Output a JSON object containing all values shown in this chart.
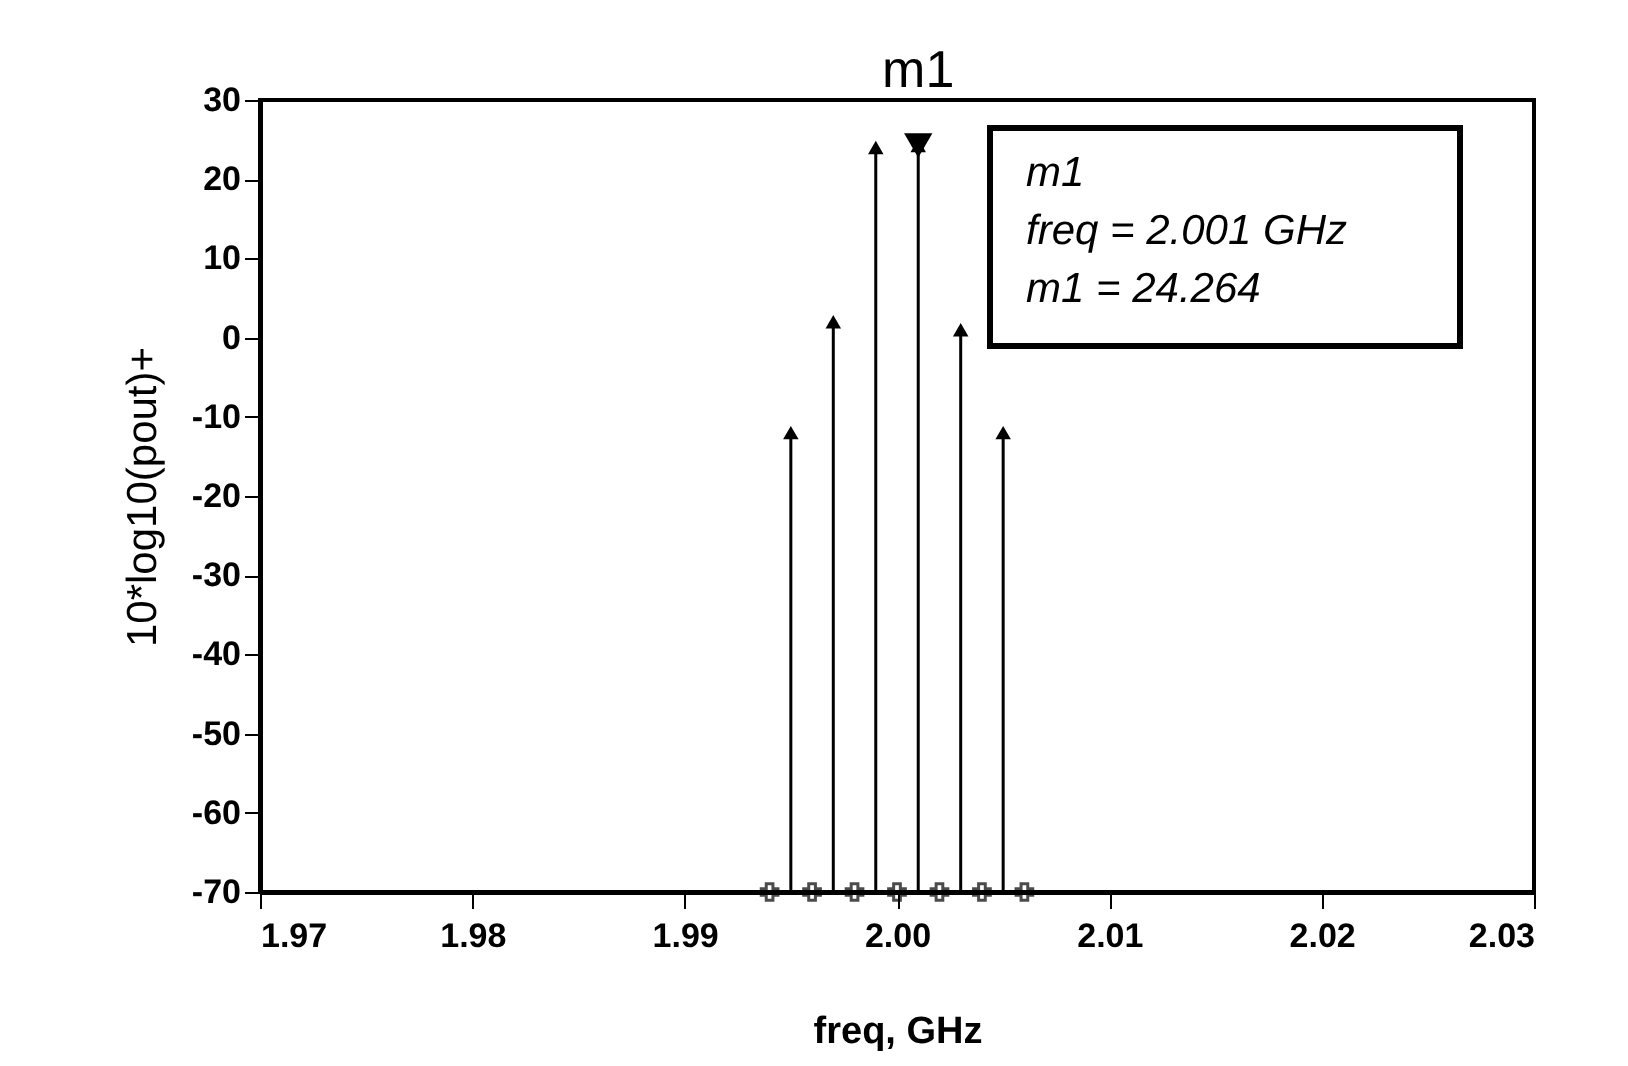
{
  "chart_data": {
    "type": "lollipop",
    "xlabel": "freq, GHz",
    "ylabel": "10*log10(pout)+",
    "x": [
      1.995,
      1.997,
      1.999,
      2.001,
      2.003,
      2.005
    ],
    "series": [
      {
        "type": "lollipop",
        "color": "#000000",
        "marker": "triangle",
        "values": [
          -12,
          2,
          24,
          24.264,
          1,
          -12
        ]
      },
      {
        "type": "scatter",
        "color": "#000000",
        "marker": "cross",
        "x": [
          1.994,
          1.996,
          1.998,
          2.0,
          2.002,
          2.004,
          2.006
        ],
        "values": [
          -70,
          -70,
          -70,
          -70,
          -70,
          -70,
          -70
        ]
      }
    ],
    "xlim": [
      1.97,
      2.03
    ],
    "xticks": [
      {
        "value": 1.97,
        "label": "1.97"
      },
      {
        "value": 1.98,
        "label": "1.98"
      },
      {
        "value": 1.99,
        "label": "1.99"
      },
      {
        "value": 2.0,
        "label": "2.00"
      },
      {
        "value": 2.01,
        "label": "2.01"
      },
      {
        "value": 2.02,
        "label": "2.02"
      },
      {
        "value": 2.03,
        "label": "2.03"
      }
    ],
    "ylim": [
      -70,
      30
    ],
    "yticks": [
      -70,
      -60,
      -50,
      -40,
      -30,
      -20,
      -10,
      0,
      10,
      20,
      30
    ],
    "grid": false,
    "annotations": [
      {
        "text": "m1",
        "x": 2.001,
        "y": 24.264
      },
      "m1",
      "freq = 2.001 GHz",
      "m1 = 24.264"
    ]
  }
}
